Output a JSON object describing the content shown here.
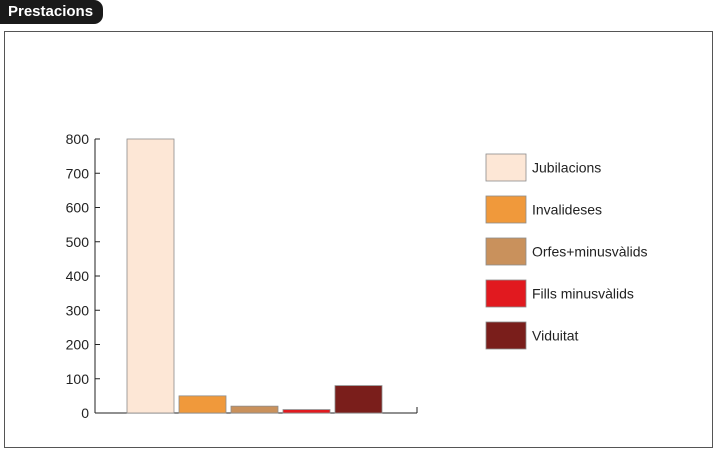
{
  "title_tag": "Prestacions",
  "chart_data": {
    "type": "bar",
    "title": "Prestacions",
    "xlabel": "",
    "ylabel": "",
    "ylim": [
      0,
      800
    ],
    "yticks": [
      0,
      100,
      200,
      300,
      400,
      500,
      600,
      700,
      800
    ],
    "legend_position": "right",
    "series": [
      {
        "name": "Jubilacions",
        "value": 800,
        "color": "#fde7d6"
      },
      {
        "name": "Invalideses",
        "value": 50,
        "color": "#f0993b"
      },
      {
        "name": "Orfes+minusvàlids",
        "value": 20,
        "color": "#c9915c"
      },
      {
        "name": "Fills minusvàlids",
        "value": 10,
        "color": "#e1191f"
      },
      {
        "name": "Viduitat",
        "value": 80,
        "color": "#7a1e1b"
      }
    ]
  }
}
